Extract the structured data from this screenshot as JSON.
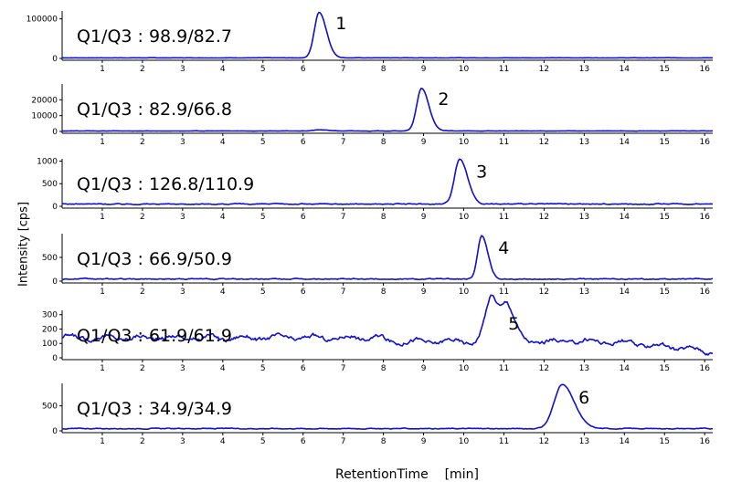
{
  "chart_data": {
    "type": "line",
    "xlabel": "RetentionTime",
    "xunit": "[min]",
    "ylabel": "Intensity [cps]",
    "xlim": [
      0,
      16.2
    ],
    "xticks": [
      1,
      2,
      3,
      4,
      5,
      6,
      7,
      8,
      9,
      10,
      11,
      12,
      13,
      14,
      15,
      16
    ],
    "line_color": "#1010cc",
    "panels": [
      {
        "transition": "Q1/Q3 : 98.9/82.7",
        "peak_label": "1",
        "ylim": [
          0,
          120000
        ],
        "yticks": [
          0,
          100000
        ],
        "ytick_labels": [
          "0",
          "100000"
        ],
        "baseline": 1500,
        "noise": 400,
        "peaks": [
          {
            "rt": 6.4,
            "height": 115000,
            "width": 0.12
          }
        ]
      },
      {
        "transition": "Q1/Q3 : 82.9/66.8",
        "peak_label": "2",
        "ylim": [
          0,
          30000
        ],
        "yticks": [
          0,
          10000,
          20000
        ],
        "ytick_labels": [
          "0",
          "10000",
          "20000"
        ],
        "baseline": 300,
        "noise": 150,
        "peaks": [
          {
            "rt": 8.95,
            "height": 27000,
            "width": 0.12
          },
          {
            "rt": 6.4,
            "height": 700,
            "width": 0.15
          }
        ]
      },
      {
        "transition": "Q1/Q3 : 126.8/110.9",
        "peak_label": "3",
        "ylim": [
          0,
          1050
        ],
        "yticks": [
          0,
          500,
          1000
        ],
        "ytick_labels": [
          "0",
          "500",
          "1000"
        ],
        "baseline": 50,
        "noise": 15,
        "peaks": [
          {
            "rt": 9.9,
            "height": 1000,
            "width": 0.13
          }
        ]
      },
      {
        "transition": "Q1/Q3 : 66.9/50.9",
        "peak_label": "4",
        "ylim": [
          0,
          1000
        ],
        "yticks": [
          0,
          500
        ],
        "ytick_labels": [
          "0",
          "500"
        ],
        "baseline": 45,
        "noise": 15,
        "peaks": [
          {
            "rt": 10.45,
            "height": 920,
            "width": 0.1
          }
        ]
      },
      {
        "transition": "Q1/Q3 : 61.9/61.9",
        "peak_label": "5",
        "ylim": [
          0,
          330
        ],
        "yticks": [
          0,
          100,
          200,
          300
        ],
        "ytick_labels": [
          "0",
          "100",
          "200",
          "300"
        ],
        "baseline": 140,
        "noise": 20,
        "peaks": [
          {
            "rt": 10.7,
            "height": 310,
            "width": 0.15
          },
          {
            "rt": 11.1,
            "height": 210,
            "width": 0.12
          }
        ]
      },
      {
        "transition": "Q1/Q3 : 34.9/34.9",
        "peak_label": "6",
        "ylim": [
          0,
          950
        ],
        "yticks": [
          0,
          500
        ],
        "ytick_labels": [
          "0",
          "500"
        ],
        "baseline": 45,
        "noise": 12,
        "peaks": [
          {
            "rt": 12.45,
            "height": 880,
            "width": 0.2
          }
        ]
      }
    ]
  }
}
